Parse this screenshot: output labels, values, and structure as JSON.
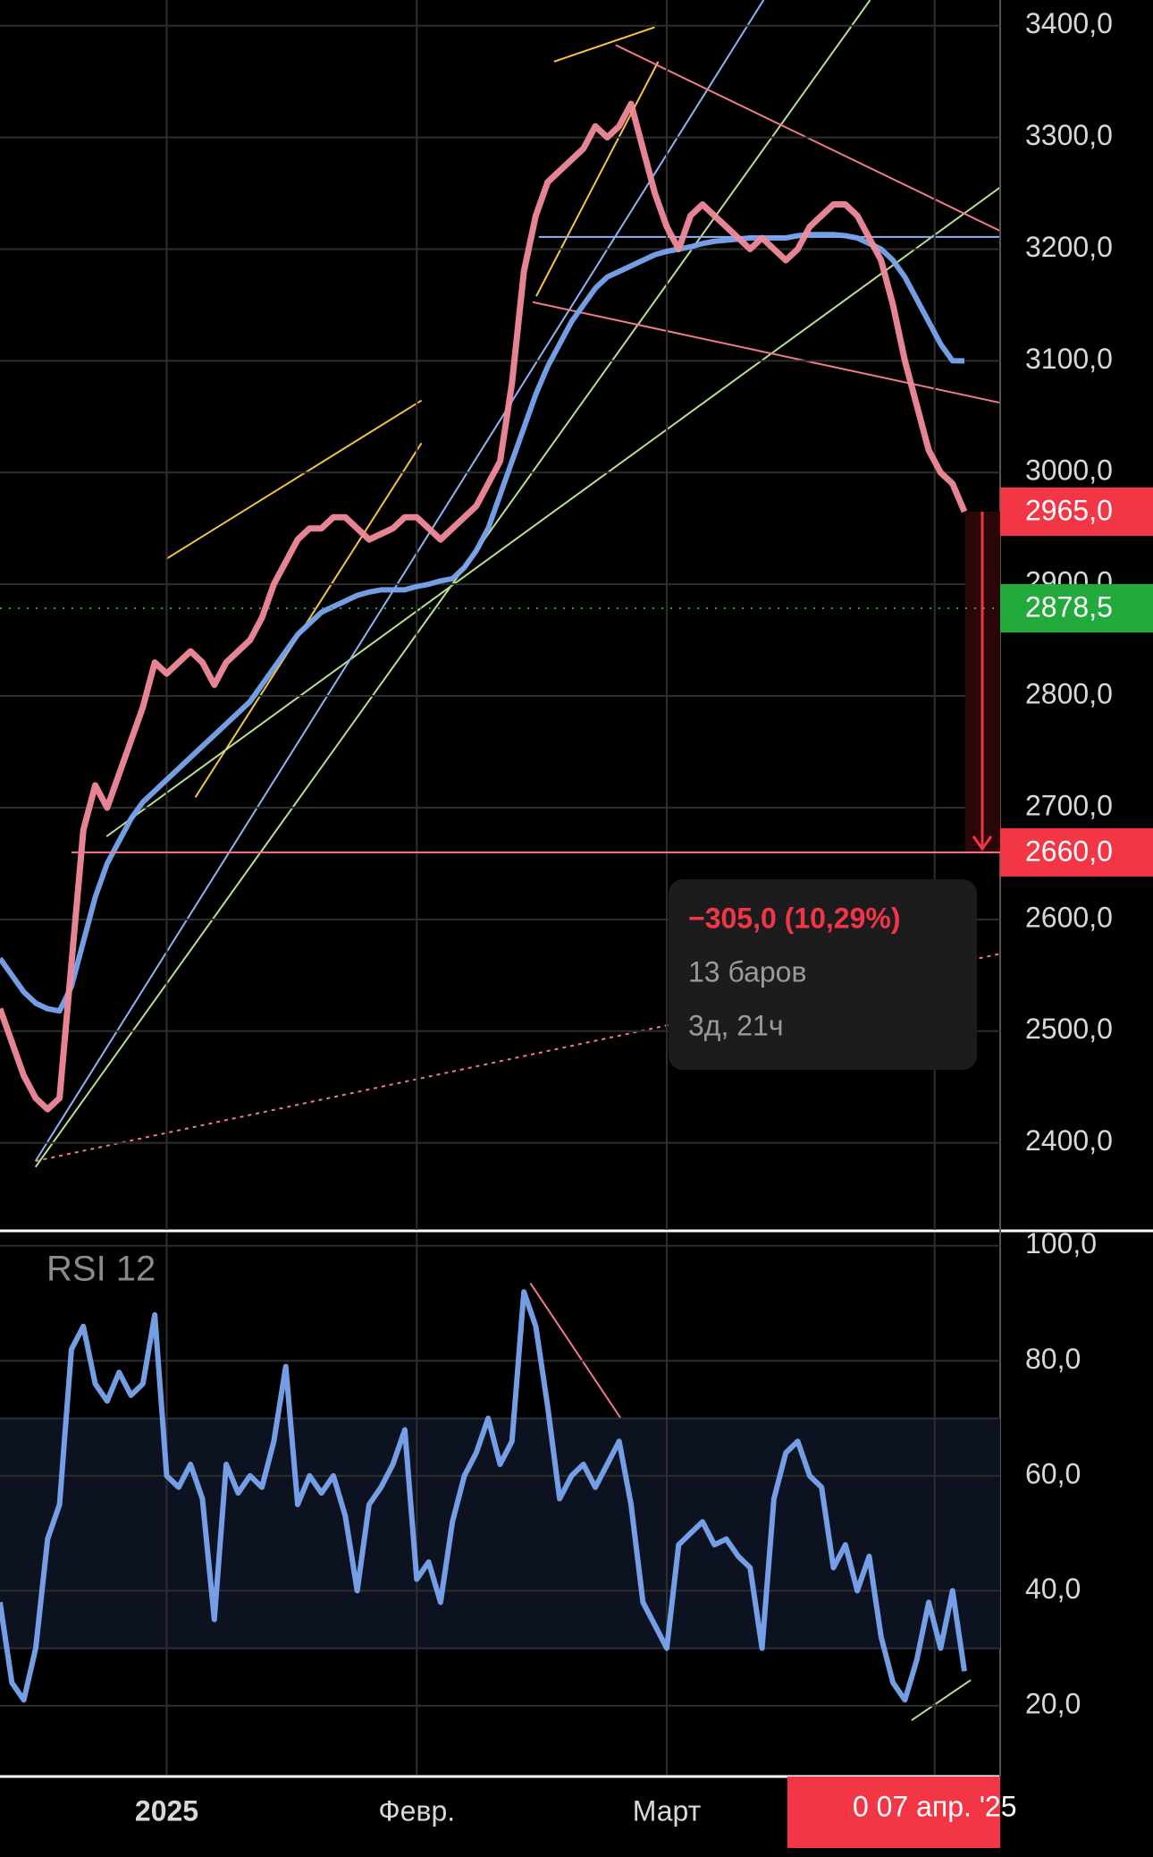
{
  "chart_data": [
    {
      "type": "line",
      "xlim": [
        0,
        84
      ],
      "ylim": [
        2322,
        3423
      ],
      "yticks": [
        {
          "value": 2400,
          "label": "2400,0"
        },
        {
          "value": 2500,
          "label": "2500,0"
        },
        {
          "value": 2600,
          "label": "2600,0"
        },
        {
          "value": 2700,
          "label": "2700,0"
        },
        {
          "value": 2800,
          "label": "2800,0"
        },
        {
          "value": 2900,
          "label": "2900,0"
        },
        {
          "value": 3000,
          "label": "3000,0"
        },
        {
          "value": 3100,
          "label": "3100,0"
        },
        {
          "value": 3200,
          "label": "3200,0"
        },
        {
          "value": 3300,
          "label": "3300,0"
        },
        {
          "value": 3400,
          "label": "3400,0"
        }
      ],
      "grid": true,
      "series": [
        {
          "color": "#7aa7f0",
          "values": [
            2565,
            2550,
            2535,
            2525,
            2520,
            2518,
            2540,
            2580,
            2620,
            2650,
            2670,
            2690,
            2705,
            2715,
            2725,
            2735,
            2745,
            2755,
            2765,
            2775,
            2785,
            2795,
            2810,
            2825,
            2840,
            2855,
            2865,
            2875,
            2880,
            2885,
            2890,
            2893,
            2895,
            2895,
            2895,
            2898,
            2900,
            2903,
            2905,
            2915,
            2930,
            2950,
            2980,
            3010,
            3040,
            3070,
            3095,
            3115,
            3135,
            3150,
            3165,
            3175,
            3180,
            3185,
            3190,
            3195,
            3198,
            3200,
            3202,
            3205,
            3207,
            3208,
            3209,
            3210,
            3210,
            3210,
            3210,
            3212,
            3213,
            3213,
            3213,
            3212,
            3210,
            3205,
            3200,
            3190,
            3175,
            3155,
            3135,
            3115,
            3100,
            3100
          ]
        },
        {
          "color": "#f28b9b",
          "values": [
            2520,
            2490,
            2460,
            2440,
            2430,
            2440,
            2560,
            2680,
            2720,
            2700,
            2730,
            2760,
            2790,
            2830,
            2820,
            2830,
            2840,
            2830,
            2810,
            2830,
            2840,
            2850,
            2870,
            2900,
            2920,
            2940,
            2950,
            2950,
            2960,
            2960,
            2950,
            2940,
            2945,
            2950,
            2960,
            2960,
            2950,
            2940,
            2950,
            2960,
            2970,
            2990,
            3010,
            3080,
            3180,
            3230,
            3260,
            3270,
            3280,
            3290,
            3310,
            3300,
            3310,
            3330,
            3290,
            3250,
            3220,
            3200,
            3230,
            3240,
            3230,
            3220,
            3210,
            3200,
            3210,
            3200,
            3190,
            3200,
            3220,
            3230,
            3240,
            3240,
            3230,
            3210,
            3190,
            3150,
            3100,
            3060,
            3020,
            3000,
            2990,
            2965
          ]
        }
      ],
      "markers": [
        {
          "value": 2965,
          "label": "2965,0",
          "color": "#f23645"
        },
        {
          "value": 2878.5,
          "label": "2878,5",
          "color": "#22ab3c"
        },
        {
          "value": 2660,
          "label": "2660,0",
          "color": "#f23645"
        }
      ],
      "annotations": [
        "−305,0 (10,29%)",
        "13 баров",
        "3д, 21ч"
      ]
    },
    {
      "type": "line",
      "title": "RSI 12",
      "xlim": [
        0,
        84
      ],
      "ylim": [
        8,
        102.3
      ],
      "yticks": [
        {
          "value": 20,
          "label": "20,0"
        },
        {
          "value": 40,
          "label": "40,0"
        },
        {
          "value": 60,
          "label": "60,0"
        },
        {
          "value": 80,
          "label": "80,0"
        },
        {
          "value": 100,
          "label": "100,0"
        }
      ],
      "band": [
        30,
        70
      ],
      "grid": true,
      "xticks": [
        {
          "value": 14,
          "label": "2025"
        },
        {
          "value": 35,
          "label": "Февр."
        },
        {
          "value": 56,
          "label": "Март"
        }
      ],
      "cursor": {
        "value": 78.5,
        "label": "0 07 апр. '25"
      },
      "series": [
        {
          "color": "#7aa7f0",
          "values": [
            38,
            24,
            21,
            30,
            49,
            55,
            82,
            86,
            76,
            73,
            78,
            74,
            76,
            88,
            60,
            58,
            62,
            56,
            35,
            62,
            57,
            60,
            58,
            66,
            79,
            55,
            60,
            57,
            60,
            53,
            40,
            55,
            58,
            62,
            68,
            42,
            45,
            38,
            52,
            60,
            64,
            70,
            62,
            66,
            92,
            86,
            72,
            56,
            60,
            62,
            58,
            62,
            66,
            55,
            38,
            34,
            30,
            48,
            50,
            52,
            48,
            49,
            46,
            44,
            30,
            56,
            64,
            66,
            60,
            58,
            44,
            48,
            40,
            46,
            32,
            24,
            21,
            28,
            38,
            30,
            40,
            26
          ]
        }
      ]
    }
  ]
}
